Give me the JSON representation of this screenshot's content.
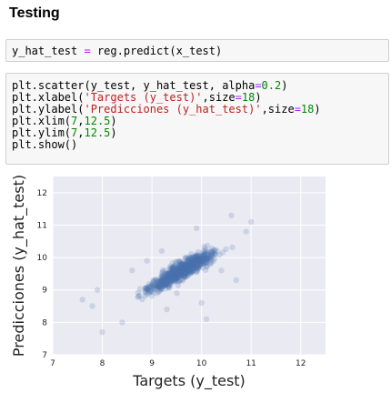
{
  "section_title": "Testing",
  "cells": [
    {
      "lines": [
        {
          "parts": [
            {
              "t": "y_hat_test ",
              "c": ""
            },
            {
              "t": "=",
              "c": "op"
            },
            {
              "t": " reg.predict(x_test)",
              "c": ""
            }
          ]
        }
      ]
    },
    {
      "lines": [
        {
          "parts": [
            {
              "t": "plt.scatter(y_test, y_hat_test, alpha",
              "c": ""
            },
            {
              "t": "=",
              "c": "op"
            },
            {
              "t": "0.2",
              "c": "num"
            },
            {
              "t": ")",
              "c": ""
            }
          ]
        },
        {
          "parts": [
            {
              "t": "plt.xlabel(",
              "c": ""
            },
            {
              "t": "'Targets (y_test)'",
              "c": "str"
            },
            {
              "t": ",size",
              "c": ""
            },
            {
              "t": "=",
              "c": "op"
            },
            {
              "t": "18",
              "c": "num"
            },
            {
              "t": ")",
              "c": ""
            }
          ]
        },
        {
          "parts": [
            {
              "t": "plt.ylabel(",
              "c": ""
            },
            {
              "t": "'Predicciones (y_hat_test)'",
              "c": "str"
            },
            {
              "t": ",size",
              "c": ""
            },
            {
              "t": "=",
              "c": "op"
            },
            {
              "t": "18",
              "c": "num"
            },
            {
              "t": ")",
              "c": ""
            }
          ]
        },
        {
          "parts": [
            {
              "t": "plt.xlim(",
              "c": ""
            },
            {
              "t": "7",
              "c": "num"
            },
            {
              "t": ",",
              "c": ""
            },
            {
              "t": "12.5",
              "c": "num"
            },
            {
              "t": ")",
              "c": ""
            }
          ]
        },
        {
          "parts": [
            {
              "t": "plt.ylim(",
              "c": ""
            },
            {
              "t": "7",
              "c": "num"
            },
            {
              "t": ",",
              "c": ""
            },
            {
              "t": "12.5",
              "c": "num"
            },
            {
              "t": ")",
              "c": ""
            }
          ]
        },
        {
          "parts": [
            {
              "t": "plt.show()",
              "c": ""
            }
          ]
        }
      ]
    }
  ],
  "chart_data": {
    "type": "scatter",
    "xlabel": "Targets (y_test)",
    "ylabel": "Predicciones (y_hat_test)",
    "xlim": [
      7,
      12.5
    ],
    "ylim": [
      7,
      12.5
    ],
    "xticks": [
      7,
      8,
      9,
      10,
      11,
      12
    ],
    "yticks": [
      7,
      8,
      9,
      10,
      11,
      12
    ],
    "grid": true,
    "alpha": 0.2,
    "point_color": "#4c72b0",
    "background_color": "#eaeaf2",
    "trend": {
      "slope": 0.88,
      "intercept": 1.15,
      "x_range": [
        7.8,
        11.0
      ],
      "noise": 0.22
    },
    "outliers": [
      [
        7.6,
        8.7
      ],
      [
        7.8,
        8.5
      ],
      [
        8.0,
        7.7
      ],
      [
        7.9,
        9.0
      ],
      [
        8.6,
        9.6
      ],
      [
        8.9,
        9.9
      ],
      [
        9.3,
        8.4
      ],
      [
        9.5,
        8.9
      ],
      [
        10.1,
        8.1
      ],
      [
        10.4,
        9.6
      ],
      [
        10.7,
        9.3
      ],
      [
        10.9,
        10.8
      ],
      [
        11.0,
        11.1
      ],
      [
        9.9,
        10.9
      ],
      [
        9.2,
        10.2
      ],
      [
        8.4,
        8.0
      ],
      [
        10.0,
        8.6
      ],
      [
        10.6,
        11.3
      ]
    ]
  }
}
